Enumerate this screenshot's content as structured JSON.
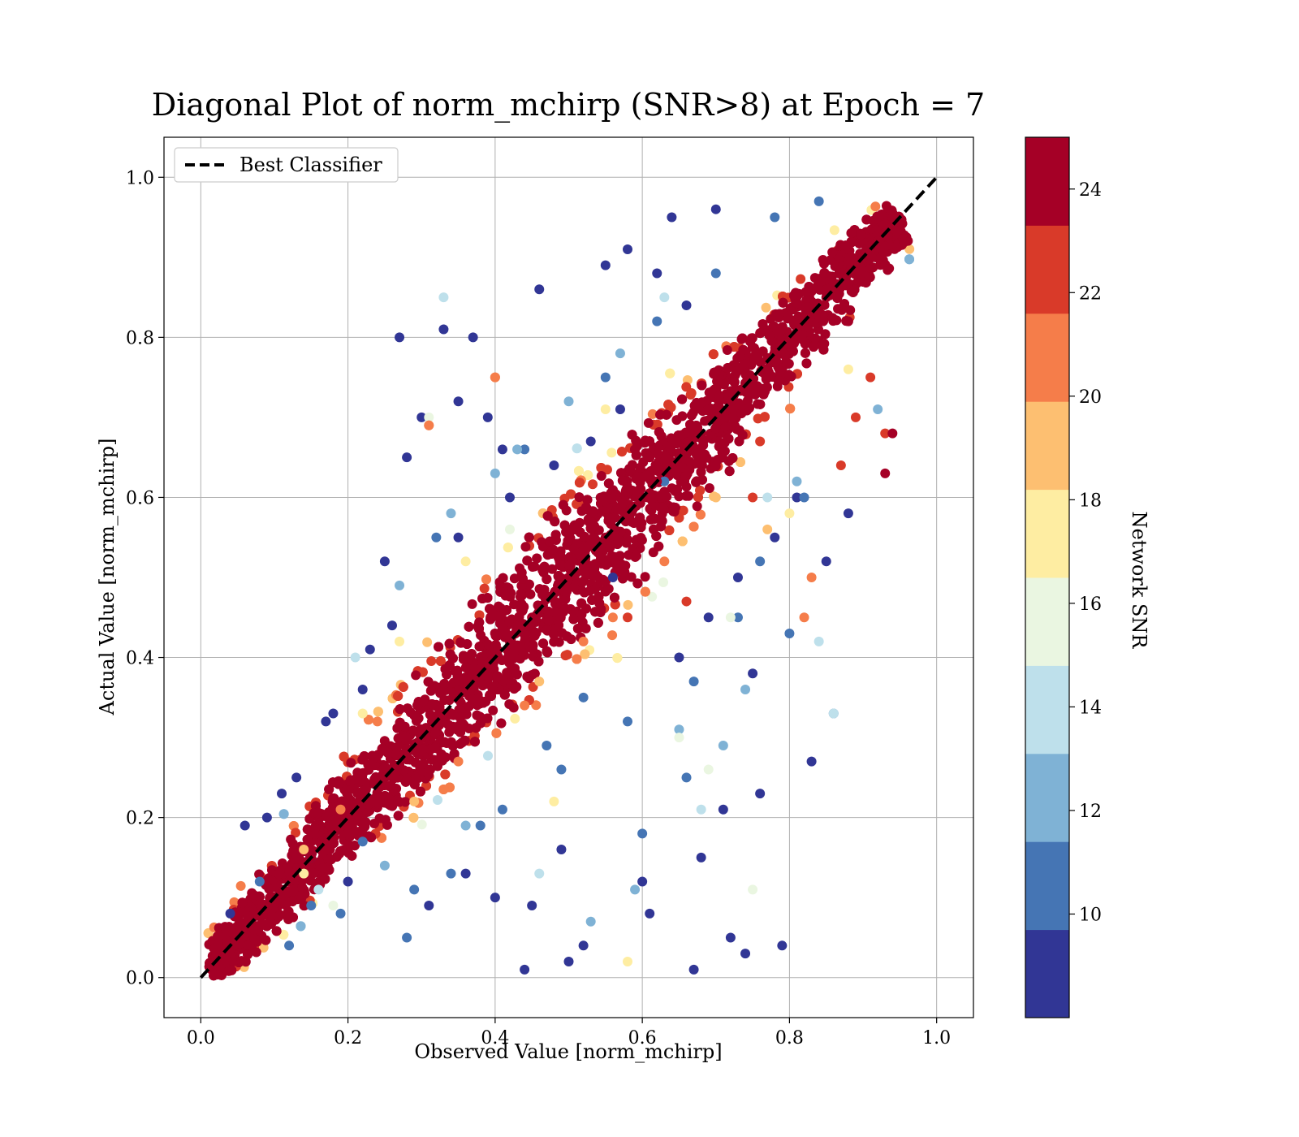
{
  "chart_data": {
    "type": "scatter",
    "title": "Diagonal Plot of norm_mchirp (SNR>8) at Epoch = 7",
    "xlabel": "Observed Value [norm_mchirp]",
    "ylabel": "Actual Value [norm_mchirp]",
    "xlim": [
      -0.05,
      1.05
    ],
    "ylim": [
      -0.05,
      1.05
    ],
    "x_ticks": [
      "0.0",
      "0.2",
      "0.4",
      "0.6",
      "0.8",
      "1.0"
    ],
    "y_ticks": [
      "0.0",
      "0.2",
      "0.4",
      "0.6",
      "0.8",
      "1.0"
    ],
    "grid": true,
    "legend": {
      "placement": "upper-left",
      "entries": [
        "Best Classifier"
      ]
    },
    "reference_line": {
      "name": "Best Classifier",
      "style": "dashed",
      "color": "#000000",
      "x": [
        0.0,
        1.0
      ],
      "y": [
        0.0,
        1.0
      ]
    },
    "colorbar": {
      "label": "Network SNR",
      "range": [
        8,
        25
      ],
      "tick_labels": [
        "10",
        "12",
        "14",
        "16",
        "18",
        "20",
        "22",
        "24"
      ],
      "tick_values": [
        10,
        12,
        14,
        16,
        18,
        20,
        22,
        24
      ],
      "bands": [
        {
          "from": 8.0,
          "to": 9.7,
          "color": "#313695"
        },
        {
          "from": 9.7,
          "to": 11.4,
          "color": "#4575b4"
        },
        {
          "from": 11.4,
          "to": 13.1,
          "color": "#7fb2d5"
        },
        {
          "from": 13.1,
          "to": 14.8,
          "color": "#bee0eb"
        },
        {
          "from": 14.8,
          "to": 16.5,
          "color": "#eaf6e1"
        },
        {
          "from": 16.5,
          "to": 18.2,
          "color": "#feeda2"
        },
        {
          "from": 18.2,
          "to": 19.9,
          "color": "#fdbf71"
        },
        {
          "from": 19.9,
          "to": 21.6,
          "color": "#f57d4a"
        },
        {
          "from": 21.6,
          "to": 23.3,
          "color": "#d93a29"
        },
        {
          "from": 23.3,
          "to": 25.0,
          "color": "#a50026"
        }
      ]
    },
    "series": [
      {
        "x": [
          0.27,
          0.33,
          0.37,
          0.35,
          0.46,
          0.39,
          0.41,
          0.3,
          0.25,
          0.28,
          0.22,
          0.18,
          0.13,
          0.09,
          0.06,
          0.04,
          0.55,
          0.58,
          0.64,
          0.62,
          0.7,
          0.66,
          0.72,
          0.79,
          0.83,
          0.88,
          0.85,
          0.76,
          0.74,
          0.71,
          0.75,
          0.5,
          0.45,
          0.44,
          0.52,
          0.61,
          0.68,
          0.67,
          0.6,
          0.49,
          0.4,
          0.36,
          0.31,
          0.2,
          0.15,
          0.11,
          0.56,
          0.65,
          0.69,
          0.73,
          0.78,
          0.81,
          0.35,
          0.42,
          0.48,
          0.53,
          0.57,
          0.26,
          0.23,
          0.17
        ],
        "y": [
          0.8,
          0.81,
          0.8,
          0.72,
          0.86,
          0.7,
          0.66,
          0.7,
          0.52,
          0.65,
          0.36,
          0.33,
          0.25,
          0.2,
          0.19,
          0.08,
          0.89,
          0.91,
          0.95,
          0.88,
          0.96,
          0.84,
          0.05,
          0.04,
          0.27,
          0.58,
          0.52,
          0.23,
          0.03,
          0.21,
          0.38,
          0.02,
          0.09,
          0.01,
          0.04,
          0.08,
          0.15,
          0.01,
          0.12,
          0.16,
          0.1,
          0.13,
          0.09,
          0.12,
          0.15,
          0.23,
          0.5,
          0.4,
          0.45,
          0.5,
          0.55,
          0.6,
          0.55,
          0.6,
          0.64,
          0.67,
          0.71,
          0.44,
          0.41,
          0.32
        ],
        "snr": [
          8,
          8,
          8,
          8,
          8,
          8,
          8,
          8,
          8,
          8,
          8,
          8,
          8,
          8,
          8,
          8,
          8,
          8,
          8,
          8,
          8,
          8,
          8,
          8,
          8,
          8,
          8,
          8,
          8,
          8,
          8,
          8,
          8,
          8,
          8,
          8,
          8,
          8,
          8,
          8,
          8,
          8,
          8,
          8,
          8,
          8,
          9,
          9,
          9,
          9,
          9,
          9,
          9,
          9,
          9,
          9,
          9,
          9,
          9,
          9
        ]
      },
      {
        "x": [
          0.32,
          0.44,
          0.55,
          0.62,
          0.7,
          0.78,
          0.84,
          0.34,
          0.41,
          0.49,
          0.58,
          0.67,
          0.73,
          0.28,
          0.19,
          0.12,
          0.08,
          0.6,
          0.66,
          0.76,
          0.52,
          0.47,
          0.38,
          0.29,
          0.22,
          0.15,
          0.82,
          0.86,
          0.8,
          0.63
        ],
        "y": [
          0.55,
          0.66,
          0.75,
          0.82,
          0.88,
          0.95,
          0.97,
          0.13,
          0.21,
          0.26,
          0.32,
          0.37,
          0.45,
          0.05,
          0.08,
          0.04,
          0.12,
          0.18,
          0.25,
          0.52,
          0.35,
          0.29,
          0.19,
          0.11,
          0.17,
          0.09,
          0.6,
          0.33,
          0.43,
          0.62
        ],
        "snr": [
          10,
          10,
          10,
          10,
          10,
          10,
          10,
          11,
          11,
          11,
          11,
          11,
          11,
          11,
          11,
          11,
          11,
          11,
          11,
          11,
          10,
          10,
          10,
          10,
          10,
          10,
          11,
          11,
          11,
          10
        ]
      },
      {
        "x": [
          0.33,
          0.86,
          0.92,
          0.84,
          0.4,
          0.43,
          0.27,
          0.21,
          0.65,
          0.68,
          0.59,
          0.53,
          0.46,
          0.36,
          0.25,
          0.16,
          0.74,
          0.71,
          0.77,
          0.81,
          0.57,
          0.63,
          0.5,
          0.34
        ],
        "y": [
          0.85,
          0.33,
          0.71,
          0.42,
          0.63,
          0.66,
          0.49,
          0.4,
          0.31,
          0.21,
          0.11,
          0.07,
          0.13,
          0.19,
          0.14,
          0.11,
          0.36,
          0.29,
          0.6,
          0.62,
          0.78,
          0.85,
          0.72,
          0.58
        ],
        "snr": [
          14,
          14,
          13,
          14,
          12,
          13,
          12,
          14,
          12,
          14,
          13,
          12,
          14,
          13,
          12,
          14,
          13,
          12,
          14,
          13,
          12,
          14,
          13,
          12
        ]
      },
      {
        "x": [
          0.69,
          0.75,
          0.58,
          0.31,
          0.27,
          0.42,
          0.55,
          0.72,
          0.36,
          0.48,
          0.65,
          0.8,
          0.22,
          0.18,
          0.14,
          0.88
        ],
        "y": [
          0.26,
          0.11,
          0.02,
          0.7,
          0.42,
          0.56,
          0.71,
          0.45,
          0.52,
          0.22,
          0.3,
          0.58,
          0.33,
          0.09,
          0.13,
          0.76
        ],
        "snr": [
          16,
          16,
          17,
          16,
          17,
          15,
          17,
          16,
          17,
          18,
          16,
          17,
          18,
          16,
          17,
          18
        ]
      },
      {
        "x": [
          0.4,
          0.31,
          0.83,
          0.82,
          0.93,
          0.87,
          0.77,
          0.35,
          0.46,
          0.56,
          0.63,
          0.7,
          0.76,
          0.24,
          0.19,
          0.14,
          0.66,
          0.52,
          0.44,
          0.29,
          0.89,
          0.91
        ],
        "y": [
          0.75,
          0.69,
          0.5,
          0.45,
          0.68,
          0.64,
          0.56,
          0.27,
          0.37,
          0.45,
          0.52,
          0.6,
          0.67,
          0.32,
          0.21,
          0.16,
          0.47,
          0.42,
          0.34,
          0.22,
          0.7,
          0.75
        ],
        "snr": [
          21,
          21,
          21,
          20,
          23,
          22,
          19,
          20,
          19,
          21,
          20,
          19,
          22,
          20,
          21,
          19,
          22,
          20,
          21,
          19,
          23,
          22
        ]
      },
      {
        "x": [
          0.02,
          0.05,
          0.08,
          0.1,
          0.12,
          0.15,
          0.18,
          0.2,
          0.22,
          0.25,
          0.28,
          0.3,
          0.33,
          0.35,
          0.38,
          0.4,
          0.42,
          0.45,
          0.48,
          0.5,
          0.52,
          0.55,
          0.58,
          0.6,
          0.62,
          0.65,
          0.68,
          0.7,
          0.72,
          0.75,
          0.78,
          0.8,
          0.82,
          0.85,
          0.88,
          0.9,
          0.92,
          0.94
        ],
        "y": [
          0.02,
          0.05,
          0.08,
          0.1,
          0.12,
          0.15,
          0.18,
          0.2,
          0.22,
          0.25,
          0.28,
          0.3,
          0.33,
          0.35,
          0.38,
          0.4,
          0.42,
          0.45,
          0.48,
          0.5,
          0.52,
          0.55,
          0.58,
          0.6,
          0.62,
          0.65,
          0.68,
          0.7,
          0.72,
          0.75,
          0.78,
          0.8,
          0.82,
          0.85,
          0.88,
          0.9,
          0.92,
          0.95
        ],
        "snr": [
          24,
          24,
          24,
          24,
          24,
          24,
          24,
          24,
          24,
          24,
          24,
          24,
          24,
          24,
          24,
          24,
          24,
          24,
          24,
          24,
          24,
          24,
          24,
          24,
          24,
          24,
          24,
          24,
          24,
          24,
          24,
          24,
          24,
          24,
          24,
          24,
          24,
          24
        ]
      },
      {
        "x": [
          0.94,
          0.93,
          0.31,
          0.4,
          0.58,
          0.75,
          0.88
        ],
        "y": [
          0.68,
          0.63,
          0.69,
          0.75,
          0.45,
          0.6,
          0.82
        ],
        "snr": [
          24,
          24,
          21,
          21,
          23,
          23,
          24
        ]
      }
    ],
    "dense_band": {
      "note_for_renderer_only": false,
      "x_range": [
        0.01,
        0.95
      ],
      "core_halfwidth": 0.06,
      "outer_halfwidth": 0.16
    }
  }
}
